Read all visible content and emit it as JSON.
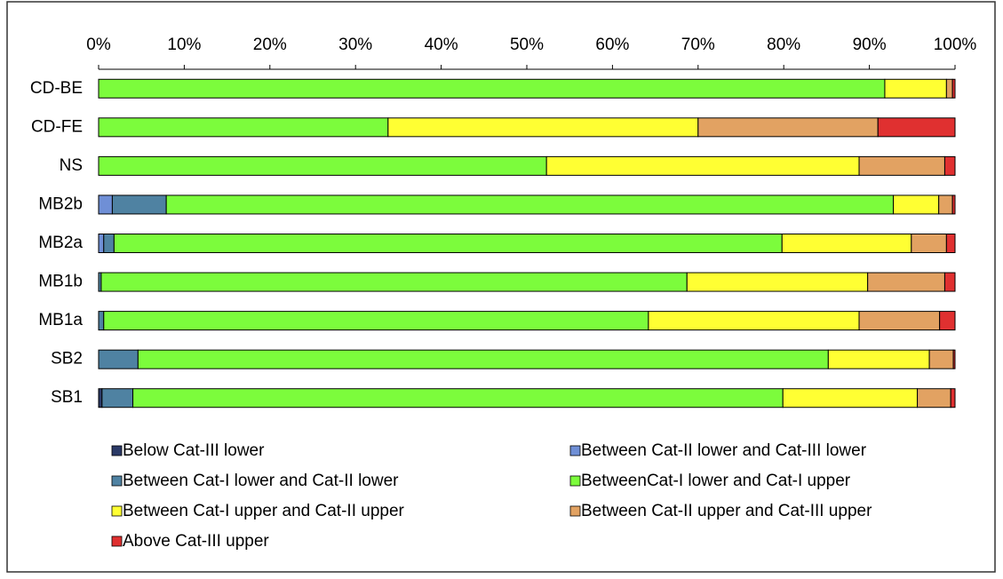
{
  "chart_data": {
    "type": "stacked_bar_horizontal",
    "categories": [
      "CD-BE",
      "CD-FE",
      "NS",
      "MB2b",
      "MB2a",
      "MB1b",
      "MB1a",
      "SB2",
      "SB1"
    ],
    "xlim": [
      0,
      100
    ],
    "xticks": [
      {
        "value": 0,
        "label": "0%"
      },
      {
        "value": 10,
        "label": "10%"
      },
      {
        "value": 20,
        "label": "20%"
      },
      {
        "value": 30,
        "label": "30%"
      },
      {
        "value": 40,
        "label": "40%"
      },
      {
        "value": 50,
        "label": "50%"
      },
      {
        "value": 60,
        "label": "60%"
      },
      {
        "value": 70,
        "label": "70%"
      },
      {
        "value": 80,
        "label": "80%"
      },
      {
        "value": 90,
        "label": "90%"
      },
      {
        "value": 100,
        "label": "100%"
      }
    ],
    "series": [
      {
        "name": "Below Cat-III lower",
        "color": "#2b3a67",
        "values": [
          0,
          0,
          0,
          0,
          0,
          0,
          0,
          0,
          0.4
        ]
      },
      {
        "name": "Between Cat-II lower and Cat-III lower",
        "color": "#6f8fd6",
        "values": [
          0,
          0,
          0,
          1.6,
          0.6,
          0,
          0,
          0,
          0
        ]
      },
      {
        "name": "Between Cat-I lower  and Cat-II lower",
        "color": "#4f82a2",
        "values": [
          0,
          0,
          0,
          6.3,
          1.2,
          0.3,
          0.6,
          4.6,
          3.6
        ]
      },
      {
        "name": "BetweenCat-I lower and Cat-I upper",
        "color": "#7cfc3c",
        "values": [
          91.8,
          33.8,
          52.3,
          84.9,
          78.0,
          68.4,
          63.6,
          80.6,
          75.9
        ]
      },
      {
        "name": "Between Cat-I upper and Cat-II upper",
        "color": "#ffff33",
        "values": [
          7.2,
          36.2,
          36.5,
          5.3,
          15.1,
          21.1,
          24.6,
          11.8,
          15.7
        ]
      },
      {
        "name": "Between Cat-II upper and Cat-III upper",
        "color": "#e2a262",
        "values": [
          0.7,
          21.0,
          10.0,
          1.6,
          4.1,
          9.0,
          9.4,
          2.8,
          3.9
        ]
      },
      {
        "name": "Above Cat-III upper",
        "color": "#e03030",
        "values": [
          0.3,
          9.0,
          1.2,
          0.3,
          1.0,
          1.2,
          1.8,
          0.2,
          0.5
        ]
      }
    ]
  }
}
